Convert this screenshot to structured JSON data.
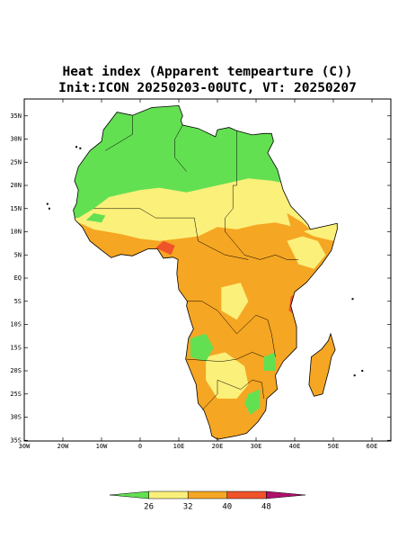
{
  "header": {
    "title": "Heat index (Apparent tempearture (C))",
    "subtitle": "Init:ICON 20250203-00UTC, VT: 20250207"
  },
  "lat_labels": [
    "35N",
    "30N",
    "25N",
    "20N",
    "15N",
    "10N",
    "5N",
    "EQ",
    "5S",
    "10S",
    "15S",
    "20S",
    "25S",
    "30S",
    "35S"
  ],
  "lon_labels": [
    "30W",
    "20W",
    "10W",
    "0",
    "10E",
    "20E",
    "30E",
    "40E",
    "50E",
    "60E"
  ],
  "colorbar": {
    "labels": [
      "26",
      "32",
      "40",
      "48"
    ]
  }
}
